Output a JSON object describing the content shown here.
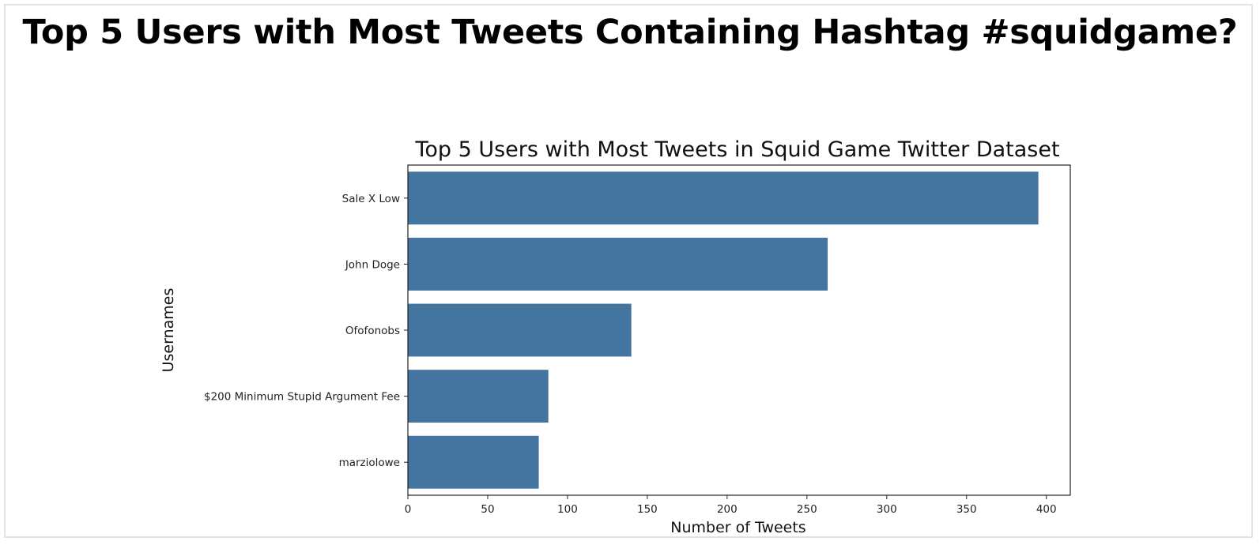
{
  "page": {
    "heading": "Top 5 Users with Most Tweets Containing Hashtag #squidgame?"
  },
  "chart_data": {
    "type": "bar",
    "orientation": "horizontal",
    "title": "Top 5 Users with Most Tweets in Squid Game Twitter Dataset",
    "xlabel": "Number of Tweets",
    "ylabel": "Usernames",
    "categories": [
      "Sale X Low",
      "John Doge",
      "Ofofonobs",
      "$200 Minimum Stupid Argument Fee",
      "marziolowe"
    ],
    "values": [
      395,
      263,
      140,
      88,
      82
    ],
    "xlim": [
      0,
      415
    ],
    "xticks": [
      0,
      50,
      100,
      150,
      200,
      250,
      300,
      350,
      400
    ],
    "bar_color": "#4475a0",
    "grid": false
  }
}
